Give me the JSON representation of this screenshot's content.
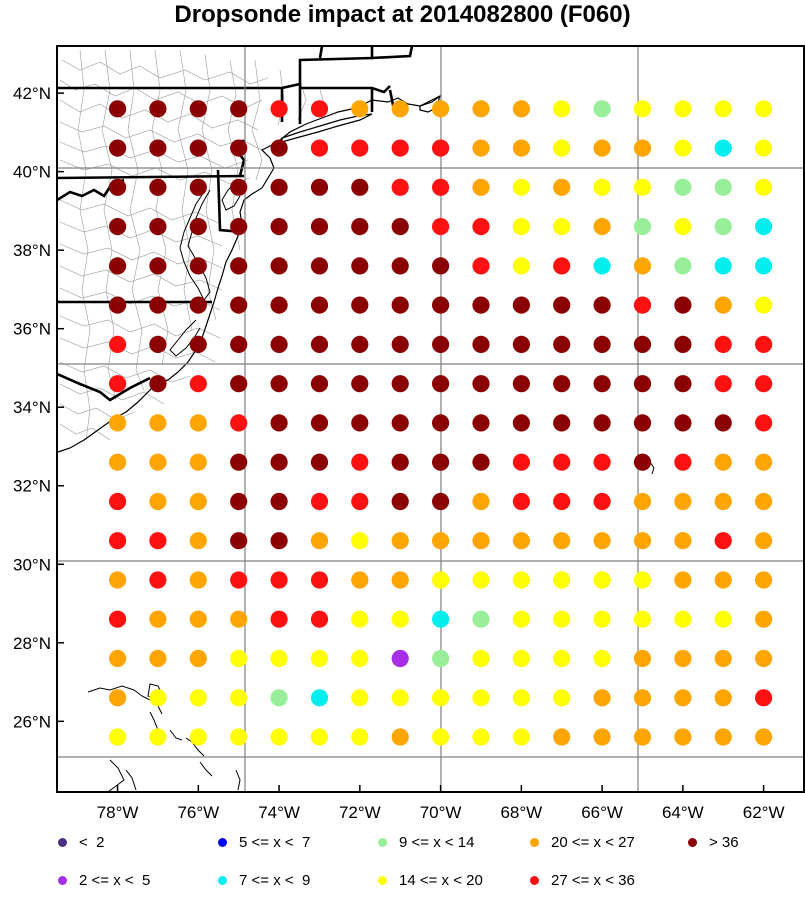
{
  "title": "Dropsonde impact at 2014082800 (F060)",
  "chart_data": {
    "type": "map-scatter",
    "title": "Dropsonde impact at 2014082800 (F060)",
    "x_ticks": [
      "78°W",
      "76°W",
      "74°W",
      "72°W",
      "70°W",
      "68°W",
      "66°W",
      "64°W",
      "62°W"
    ],
    "y_ticks": [
      "42°N",
      "40°N",
      "38°N",
      "36°N",
      "34°N",
      "32°N",
      "30°N",
      "28°N",
      "26°N"
    ],
    "lon_range": [
      -79.5,
      -61.0
    ],
    "lat_range": [
      24.2,
      43.2
    ],
    "lon_points": [
      -78,
      -77,
      -76,
      -75,
      -74,
      -73,
      -72,
      -71,
      -70,
      -69,
      -68,
      -67,
      -66,
      -65,
      -64,
      -63,
      -62
    ],
    "lat_points": [
      41.6,
      40.6,
      39.6,
      38.6,
      37.6,
      36.6,
      35.6,
      34.6,
      33.6,
      32.6,
      31.6,
      30.6,
      29.6,
      28.6,
      27.6,
      26.6,
      25.6
    ],
    "legend": [
      {
        "label": "<  2",
        "color": "#4b2d84"
      },
      {
        "label": "2 <= x <  5",
        "color": "#a62ee6"
      },
      {
        "label": "5 <= x <  7",
        "color": "#0000ee"
      },
      {
        "label": "7 <= x <  9",
        "color": "#00eeee"
      },
      {
        "label": "9 <= x < 14",
        "color": "#99ee99"
      },
      {
        "label": "14 <= x < 20",
        "color": "#ffff00"
      },
      {
        "label": "20 <= x < 27",
        "color": "#ffa500"
      },
      {
        "label": "27 <= x < 36",
        "color": "#ff1111"
      },
      {
        "label": "> 36",
        "color": "#8b0000"
      }
    ],
    "impact_category_grid": [
      [
        8,
        8,
        8,
        8,
        7,
        7,
        6,
        6,
        6,
        6,
        6,
        5,
        4,
        5,
        5,
        5,
        5
      ],
      [
        8,
        8,
        8,
        8,
        8,
        7,
        7,
        7,
        7,
        6,
        6,
        5,
        6,
        6,
        5,
        3,
        5
      ],
      [
        8,
        8,
        8,
        8,
        8,
        8,
        8,
        7,
        7,
        6,
        5,
        6,
        5,
        5,
        4,
        4,
        5
      ],
      [
        8,
        8,
        8,
        8,
        8,
        8,
        8,
        8,
        7,
        7,
        5,
        5,
        6,
        4,
        5,
        4,
        3
      ],
      [
        8,
        8,
        8,
        8,
        8,
        8,
        8,
        8,
        8,
        7,
        5,
        7,
        3,
        6,
        4,
        3,
        3
      ],
      [
        8,
        8,
        8,
        8,
        8,
        8,
        8,
        8,
        8,
        8,
        8,
        8,
        8,
        7,
        8,
        6,
        5
      ],
      [
        7,
        8,
        8,
        8,
        8,
        8,
        8,
        8,
        8,
        8,
        8,
        8,
        8,
        8,
        8,
        7,
        7
      ],
      [
        7,
        8,
        7,
        8,
        8,
        8,
        8,
        8,
        8,
        8,
        8,
        8,
        8,
        8,
        8,
        7,
        7
      ],
      [
        6,
        6,
        6,
        7,
        8,
        8,
        8,
        8,
        8,
        8,
        8,
        8,
        8,
        8,
        8,
        8,
        7
      ],
      [
        6,
        6,
        6,
        8,
        8,
        8,
        7,
        8,
        8,
        8,
        7,
        7,
        7,
        8,
        7,
        6,
        6
      ],
      [
        7,
        6,
        6,
        8,
        8,
        7,
        7,
        8,
        8,
        6,
        7,
        7,
        7,
        6,
        6,
        6,
        6
      ],
      [
        7,
        7,
        6,
        8,
        8,
        6,
        5,
        6,
        6,
        6,
        6,
        6,
        6,
        6,
        6,
        7,
        6
      ],
      [
        6,
        7,
        6,
        7,
        7,
        7,
        6,
        6,
        5,
        5,
        5,
        5,
        5,
        5,
        6,
        6,
        6
      ],
      [
        7,
        6,
        6,
        6,
        7,
        7,
        5,
        5,
        3,
        4,
        5,
        5,
        5,
        5,
        5,
        5,
        6
      ],
      [
        6,
        6,
        6,
        5,
        5,
        5,
        5,
        1,
        4,
        5,
        5,
        5,
        5,
        6,
        6,
        6,
        6
      ],
      [
        6,
        5,
        5,
        5,
        4,
        3,
        5,
        5,
        5,
        5,
        5,
        5,
        6,
        6,
        6,
        6,
        7
      ],
      [
        5,
        5,
        5,
        5,
        5,
        5,
        5,
        6,
        5,
        5,
        5,
        6,
        6,
        6,
        6,
        6,
        6
      ]
    ]
  }
}
